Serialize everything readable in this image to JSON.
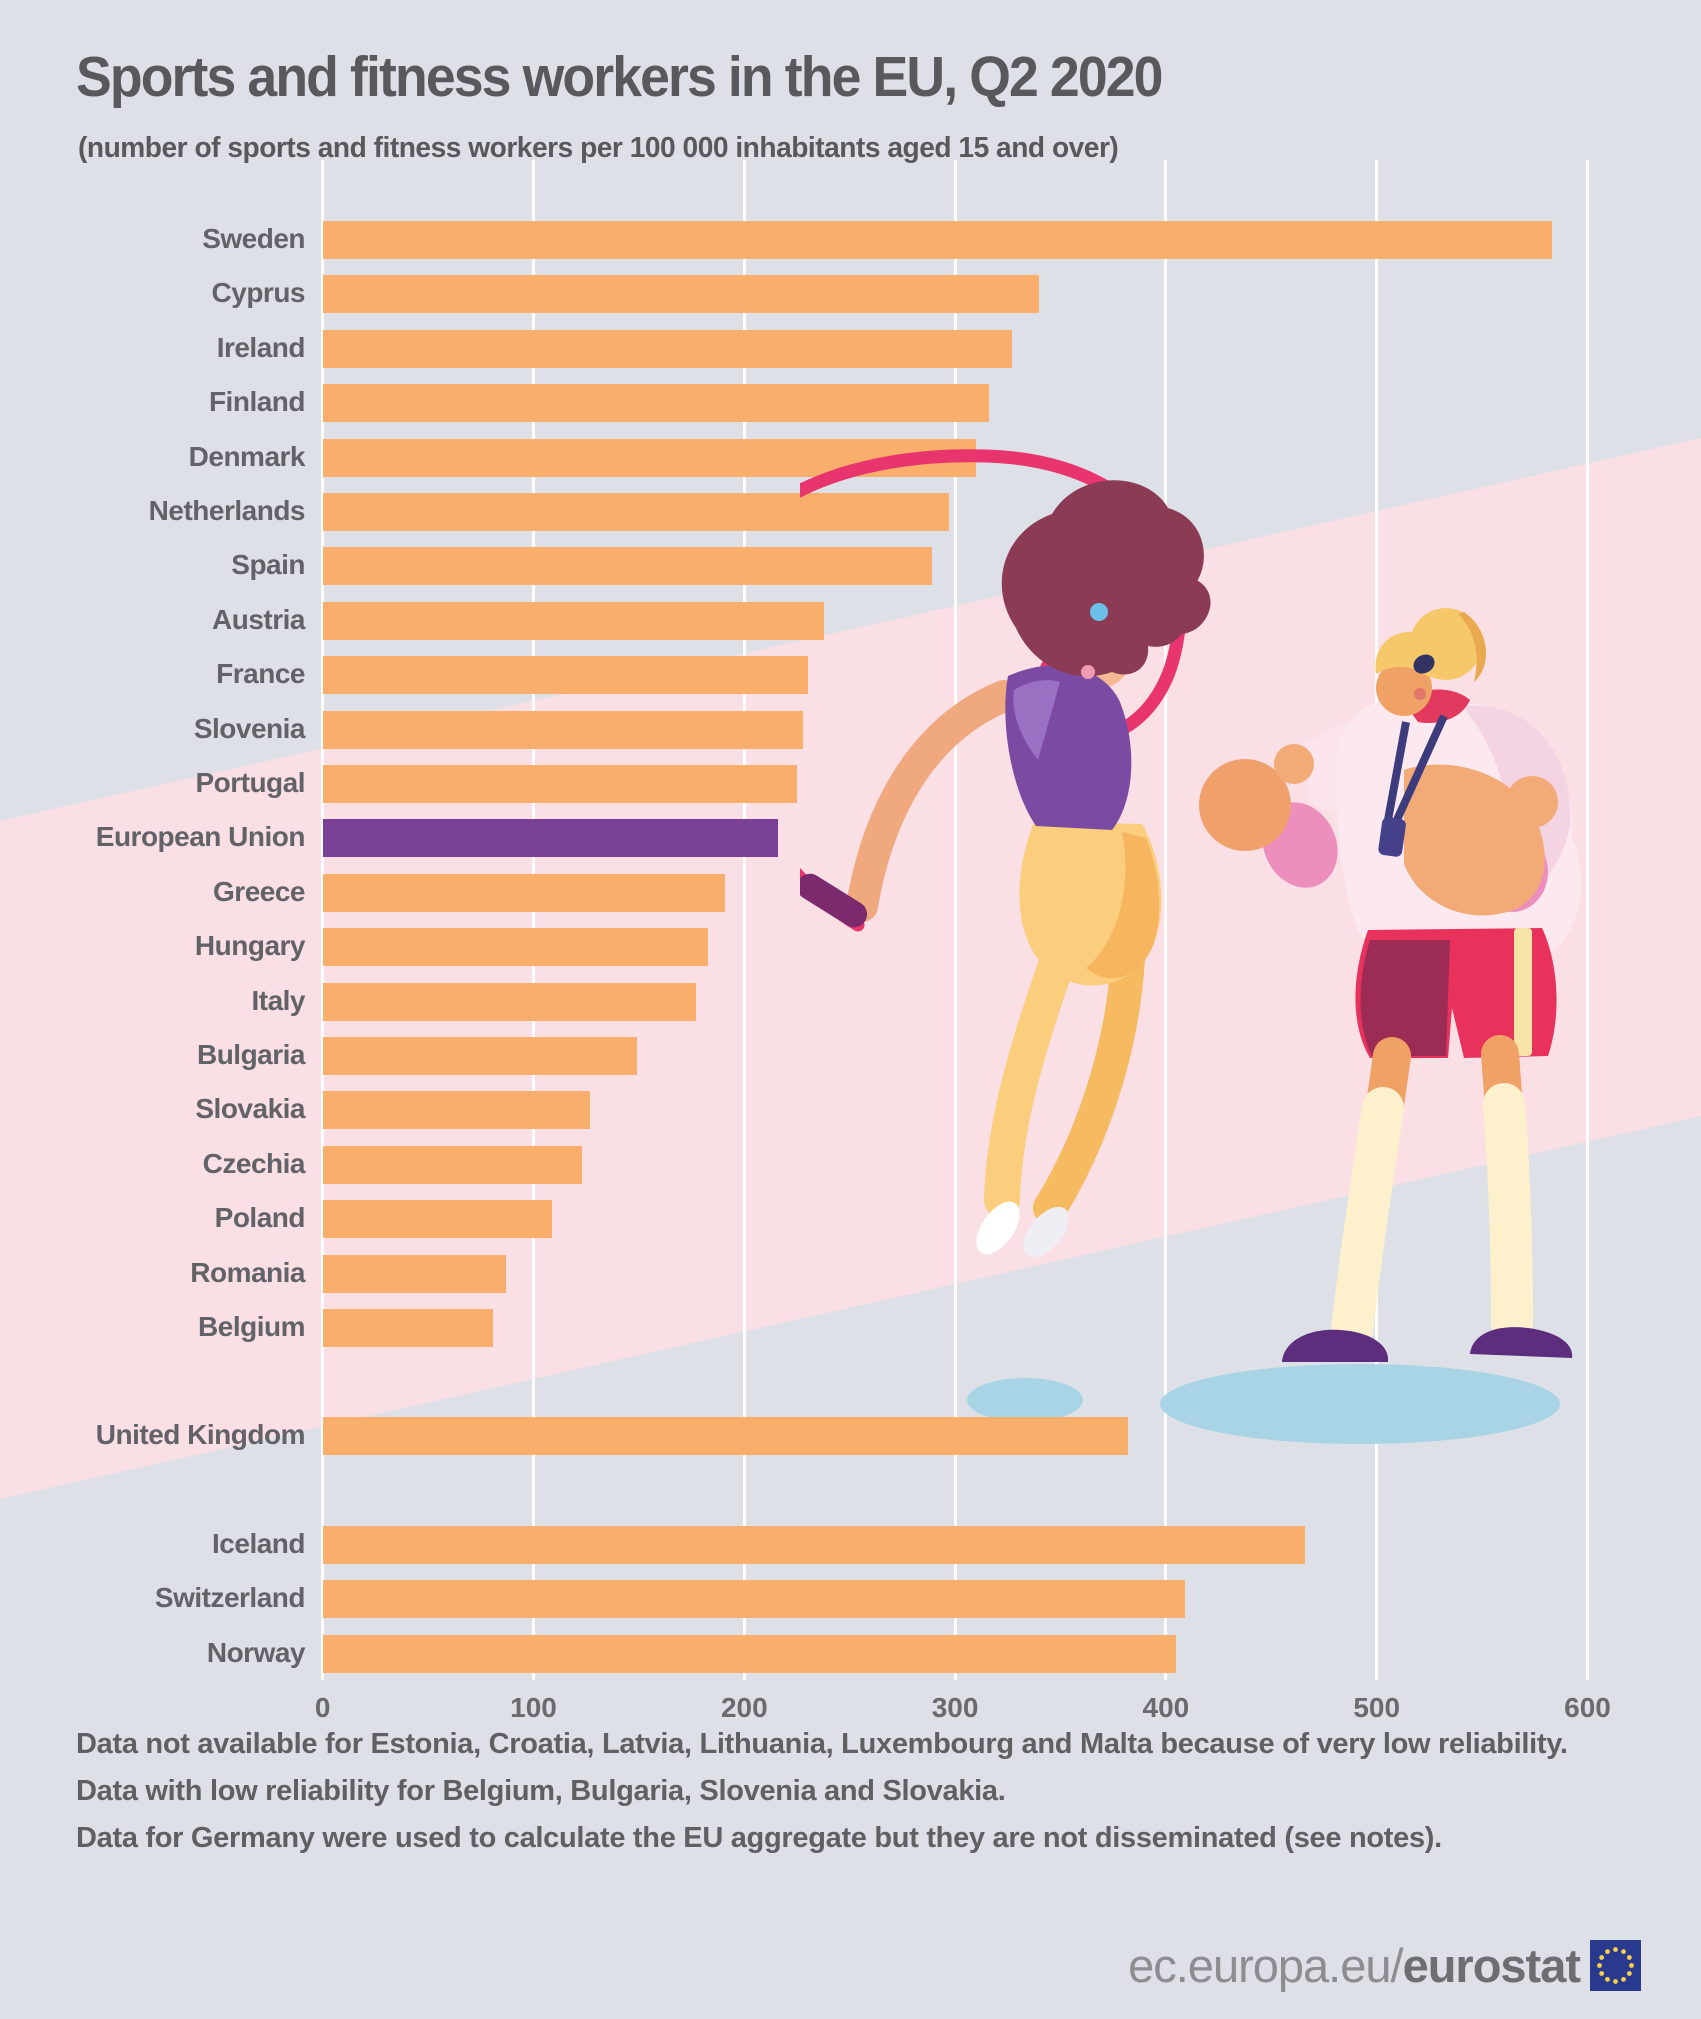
{
  "title": "Sports and fitness workers in the EU, Q2 2020",
  "subtitle": "(number of sports and fitness workers per 100 000 inhabitants aged 15 and over)",
  "chart_data": {
    "type": "bar",
    "orientation": "horizontal",
    "title": "Sports and fitness workers in the EU, Q2 2020",
    "xlabel": "number of sports and fitness workers per 100 000 inhabitants aged 15 and over",
    "xlim": [
      0,
      600
    ],
    "x_ticks": [
      0,
      100,
      200,
      300,
      400,
      500,
      600
    ],
    "grid": true,
    "bar_color": "#f9ae6c",
    "highlight_color": "#7a4096",
    "rows": [
      {
        "label": "Sweden",
        "value": 583
      },
      {
        "label": "Cyprus",
        "value": 340
      },
      {
        "label": "Ireland",
        "value": 327
      },
      {
        "label": "Finland",
        "value": 316
      },
      {
        "label": "Denmark",
        "value": 310
      },
      {
        "label": "Netherlands",
        "value": 297
      },
      {
        "label": "Spain",
        "value": 289
      },
      {
        "label": "Austria",
        "value": 238
      },
      {
        "label": "France",
        "value": 230
      },
      {
        "label": "Slovenia",
        "value": 228
      },
      {
        "label": "Portugal",
        "value": 225
      },
      {
        "label": "European Union",
        "value": 216,
        "highlight": true
      },
      {
        "label": "Greece",
        "value": 191
      },
      {
        "label": "Hungary",
        "value": 183
      },
      {
        "label": "Italy",
        "value": 177
      },
      {
        "label": "Bulgaria",
        "value": 149
      },
      {
        "label": "Slovakia",
        "value": 127
      },
      {
        "label": "Czechia",
        "value": 123
      },
      {
        "label": "Poland",
        "value": 109
      },
      {
        "label": "Romania",
        "value": 87
      },
      {
        "label": "Belgium",
        "value": 81
      },
      {
        "label": "United Kingdom",
        "value": 382,
        "gap_before": true
      },
      {
        "label": "Iceland",
        "value": 466,
        "gap_before": true
      },
      {
        "label": "Switzerland",
        "value": 409
      },
      {
        "label": "Norway",
        "value": 405
      }
    ]
  },
  "footnotes": [
    "Data not available for Estonia, Croatia, Latvia, Lithuania, Luxembourg and Malta because of very low reliability.",
    "Data with low reliability for Belgium, Bulgaria, Slovenia and Slovakia.",
    "Data for Germany were used to calculate the EU aggregate but they are not disseminated (see notes)."
  ],
  "footer": {
    "url_regular": "ec.europa.eu/",
    "url_bold": "eurostat"
  },
  "colors": {
    "background": "#dde1e7",
    "pink_band": "#fadfe5",
    "gridline": "#ffffff",
    "shadow_blue": "#a9d4e6",
    "flag_blue": "#29398e",
    "flag_star_yellow": "#f7d14b",
    "text_grey": "#5f6064"
  }
}
